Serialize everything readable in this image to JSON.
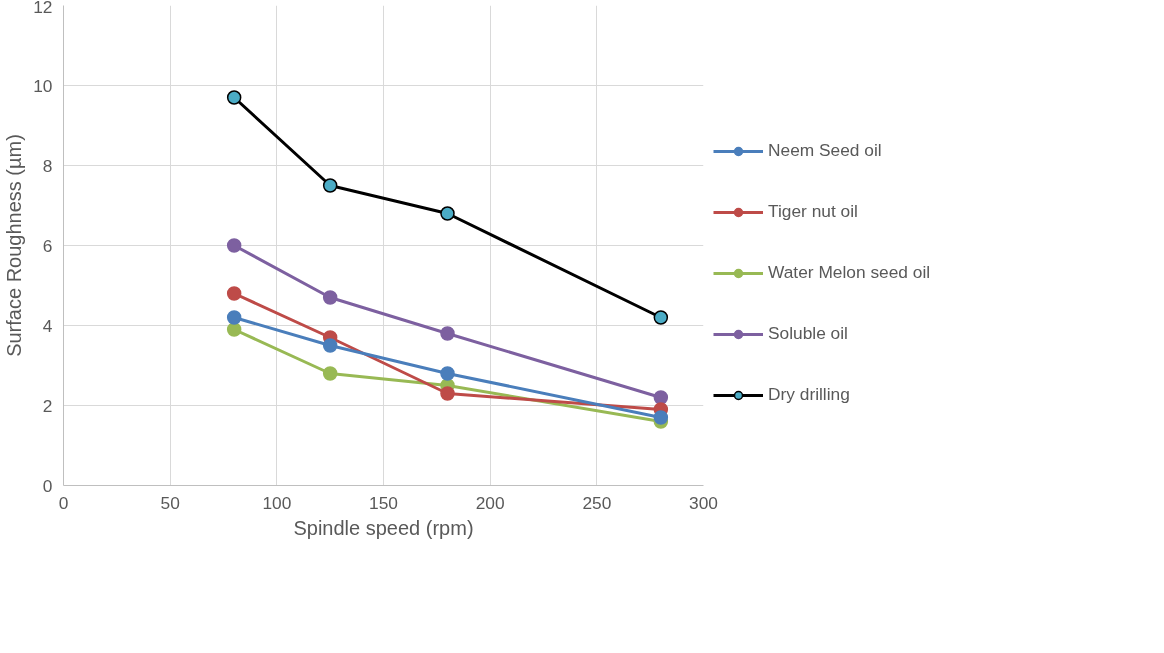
{
  "chart_data": {
    "type": "line",
    "xlabel": "Spindle speed (rpm)",
    "ylabel": "Surface Roughness (µm)",
    "x": [
      80,
      125,
      180,
      280
    ],
    "series": [
      {
        "name": "Neem Seed oil",
        "color": "#4a7ebb",
        "values": [
          4.2,
          3.5,
          2.8,
          1.7
        ]
      },
      {
        "name": "Tiger nut oil",
        "color": "#be4b48",
        "values": [
          4.8,
          3.7,
          2.3,
          1.9
        ]
      },
      {
        "name": "Water Melon seed oil",
        "color": "#98b954",
        "values": [
          3.9,
          2.8,
          2.5,
          1.6
        ]
      },
      {
        "name": "Soluble oil",
        "color": "#7d60a0",
        "values": [
          6.0,
          4.7,
          3.8,
          2.2
        ]
      },
      {
        "name": "Dry drilling",
        "color": "#000000",
        "colors": [
          "#4bacc6",
          "#4bacc6",
          "#4bacc6",
          "#4bacc6"
        ],
        "values": [
          9.7,
          7.5,
          6.8,
          4.2
        ]
      }
    ],
    "xlim": [
      0,
      300
    ],
    "xticks": [
      0,
      50,
      100,
      150,
      200,
      250,
      300
    ],
    "ylim": [
      0,
      12
    ],
    "yticks": [
      0,
      2,
      4,
      6,
      8,
      10,
      12
    ],
    "grid": true,
    "legend": "right",
    "marker": "circle",
    "line_style": "solid"
  }
}
